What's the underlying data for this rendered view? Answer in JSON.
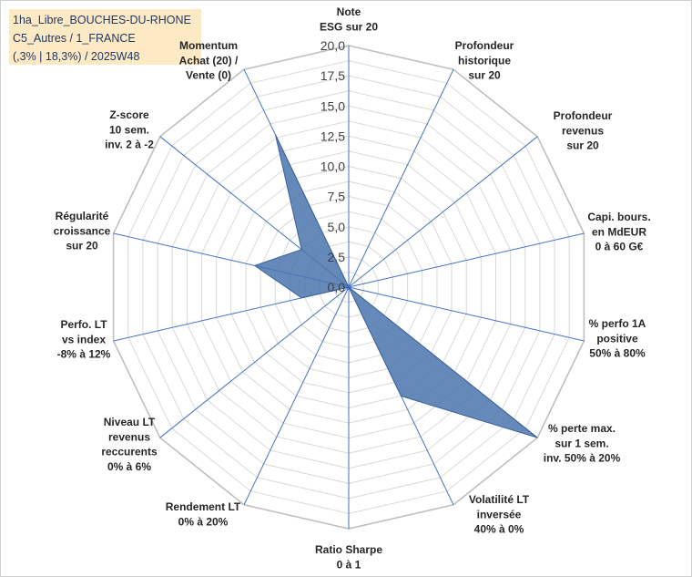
{
  "title_box": {
    "line1": "1ha_Libre_BOUCHES-DU-RHONE",
    "line2": "C5_Autres / 1_FRANCE",
    "line3": "(,3% | 18,3%) / 2025W48"
  },
  "chart_data": {
    "type": "radar",
    "title": "",
    "axes": [
      [
        "Note",
        "ESG sur 20"
      ],
      [
        "Profondeur",
        "historique",
        "sur 20"
      ],
      [
        "Profondeur",
        "revenus",
        "sur 20"
      ],
      [
        "Capi. bours.",
        "en MdEUR",
        "0 à 60 G€"
      ],
      [
        "% perfo 1A",
        "positive",
        "50% à 80%"
      ],
      [
        "% perte max.",
        "sur 1 sem.",
        "inv. 50% à 20%"
      ],
      [
        "Volatilité LT",
        "inversée",
        "40% à 0%"
      ],
      [
        "Ratio Sharpe",
        "0 à 1"
      ],
      [
        "Rendement LT",
        "0% à 20%"
      ],
      [
        "Niveau LT",
        "revenus",
        "reccurents",
        "0% à 6%"
      ],
      [
        "Perfo. LT",
        "vs index",
        "-8% à 12%"
      ],
      [
        "Régularité",
        "croissance",
        "sur 20"
      ],
      [
        "Z-score",
        "10 sem.",
        "inv. 2 à -2"
      ],
      [
        "Momentum",
        "Achat (20) /",
        "Vente (0)"
      ]
    ],
    "series": [
      {
        "name": "1ha_Libre_BOUCHES-DU-RHONE",
        "values": [
          0,
          0,
          0,
          0,
          0,
          20,
          10,
          0,
          0,
          0,
          4,
          8,
          5,
          14
        ]
      }
    ],
    "rlim": [
      0,
      20
    ],
    "ticks": [
      "0,0",
      "2,5",
      "5,0",
      "7,5",
      "10,0",
      "12,5",
      "15,0",
      "17,5",
      "20,0"
    ],
    "colors": {
      "fill": "#4a74ad",
      "stroke": "#3d6299",
      "grid": "#d9d9d9",
      "axis": "#4472c4"
    }
  }
}
